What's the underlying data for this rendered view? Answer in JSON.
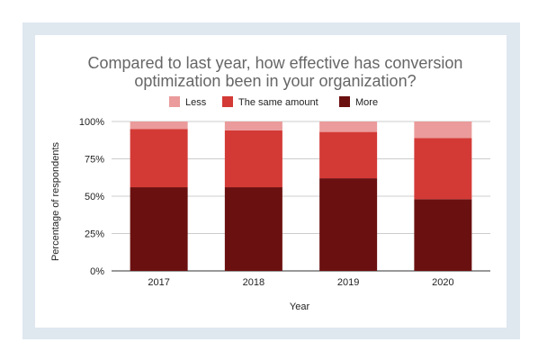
{
  "chart_data": {
    "type": "bar",
    "stacked": true,
    "title_lines": [
      "Compared to last year, how effective has conversion",
      "optimization been in your organization?"
    ],
    "xlabel": "Year",
    "ylabel": "Percentage of respondents",
    "categories": [
      "2017",
      "2018",
      "2019",
      "2020"
    ],
    "y_ticks": [
      "0%",
      "25%",
      "50%",
      "75%",
      "100%"
    ],
    "ylim": [
      0,
      100
    ],
    "legend_position": "top",
    "grid": true,
    "series": [
      {
        "name": "More",
        "color": "#6b1010",
        "values": [
          56,
          56,
          62,
          48
        ]
      },
      {
        "name": "The same amount",
        "color": "#d33a36",
        "values": [
          39,
          38,
          31,
          41
        ]
      },
      {
        "name": "Less",
        "color": "#eb9b9b",
        "values": [
          5,
          6,
          7,
          11
        ]
      }
    ],
    "legend_order": [
      "Less",
      "The same amount",
      "More"
    ]
  }
}
